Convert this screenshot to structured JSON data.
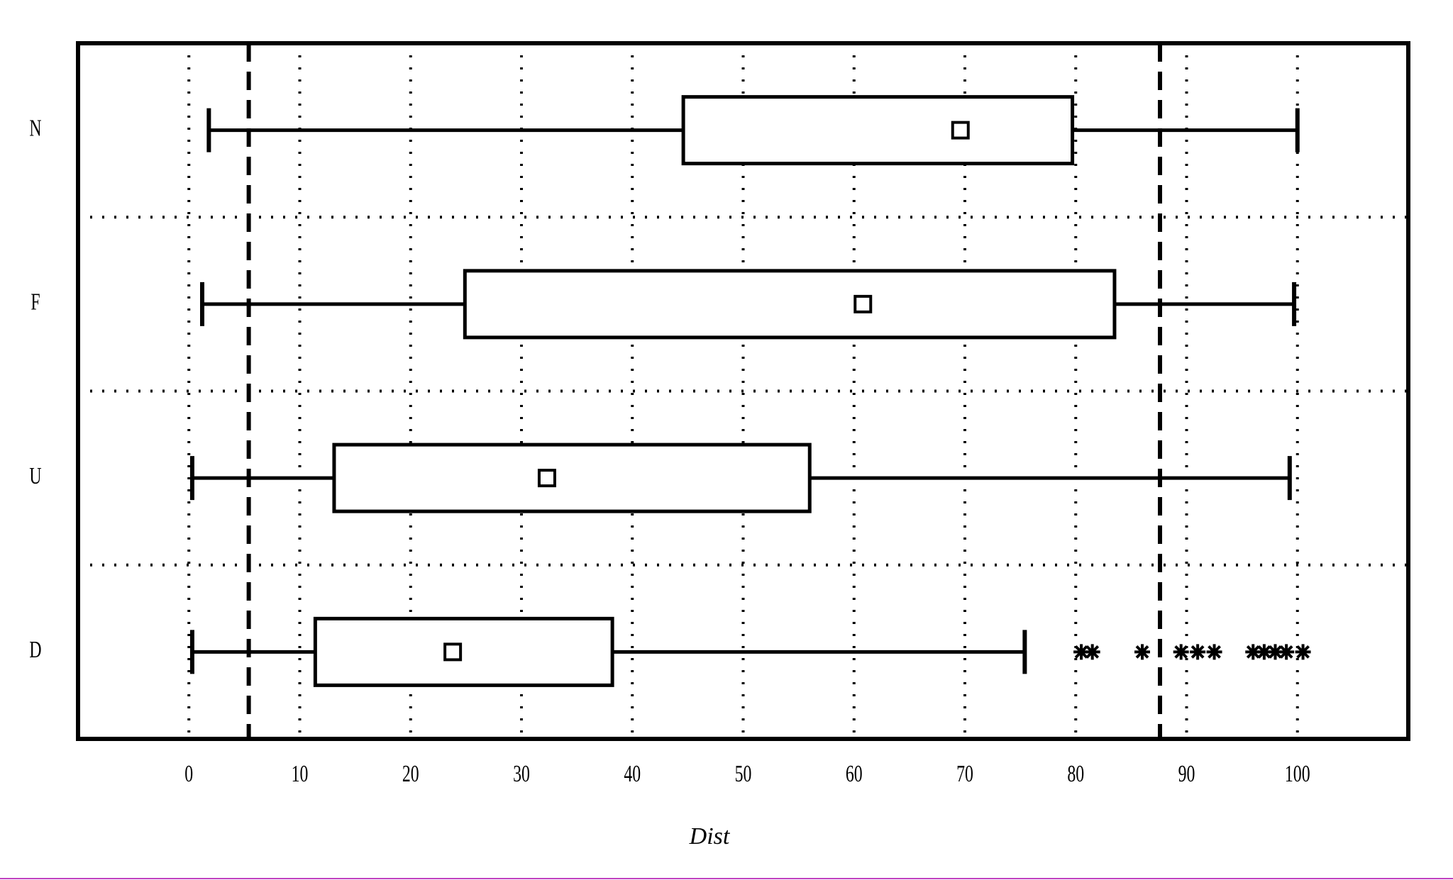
{
  "chart_data": {
    "type": "boxplot",
    "orientation": "horizontal",
    "x_label": "Dist",
    "categories": [
      "N",
      "F",
      "U",
      "D"
    ],
    "boxes": [
      {
        "low": 1.8,
        "q1": 44.6,
        "q3": 79.7,
        "high": 100,
        "mean": 69.6,
        "outliers": []
      },
      {
        "low": 1.2,
        "q1": 24.9,
        "q3": 83.5,
        "high": 99.7,
        "mean": 60.8,
        "outliers": []
      },
      {
        "low": 0.3,
        "q1": 13.1,
        "q3": 56.0,
        "high": 99.3,
        "mean": 32.3,
        "outliers": []
      },
      {
        "low": 0.3,
        "q1": 11.4,
        "q3": 38.2,
        "high": 75.4,
        "mean": 23.8,
        "outliers": [
          80.5,
          81.5,
          86,
          89.5,
          91,
          92.5,
          96,
          97,
          98,
          99,
          100.5
        ]
      }
    ],
    "reference_lines": [
      5.4,
      87.6
    ],
    "xlim": [
      -10,
      110
    ],
    "xticks": [
      0,
      10,
      20,
      30,
      40,
      50,
      60,
      70,
      80,
      90,
      100
    ],
    "grid": true,
    "color": "#000000"
  }
}
